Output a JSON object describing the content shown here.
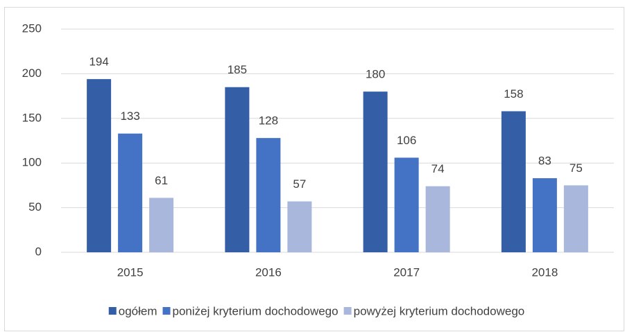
{
  "chart_data": {
    "type": "bar",
    "categories": [
      "2015",
      "2016",
      "2017",
      "2018"
    ],
    "series": [
      {
        "name": "ogółem",
        "color": "#345ea6",
        "values": [
          194,
          185,
          180,
          158
        ]
      },
      {
        "name": "poniżej kryterium dochodowego",
        "color": "#4472c4",
        "values": [
          133,
          128,
          106,
          83
        ]
      },
      {
        "name": "powyżej kryterium dochodowego",
        "color": "#a9b7dc",
        "values": [
          61,
          57,
          74,
          75
        ]
      }
    ],
    "ylim": [
      0,
      250
    ],
    "yticks": [
      0,
      50,
      100,
      150,
      200,
      250
    ],
    "grid": true,
    "data_labels": true,
    "legend": "bottom"
  }
}
